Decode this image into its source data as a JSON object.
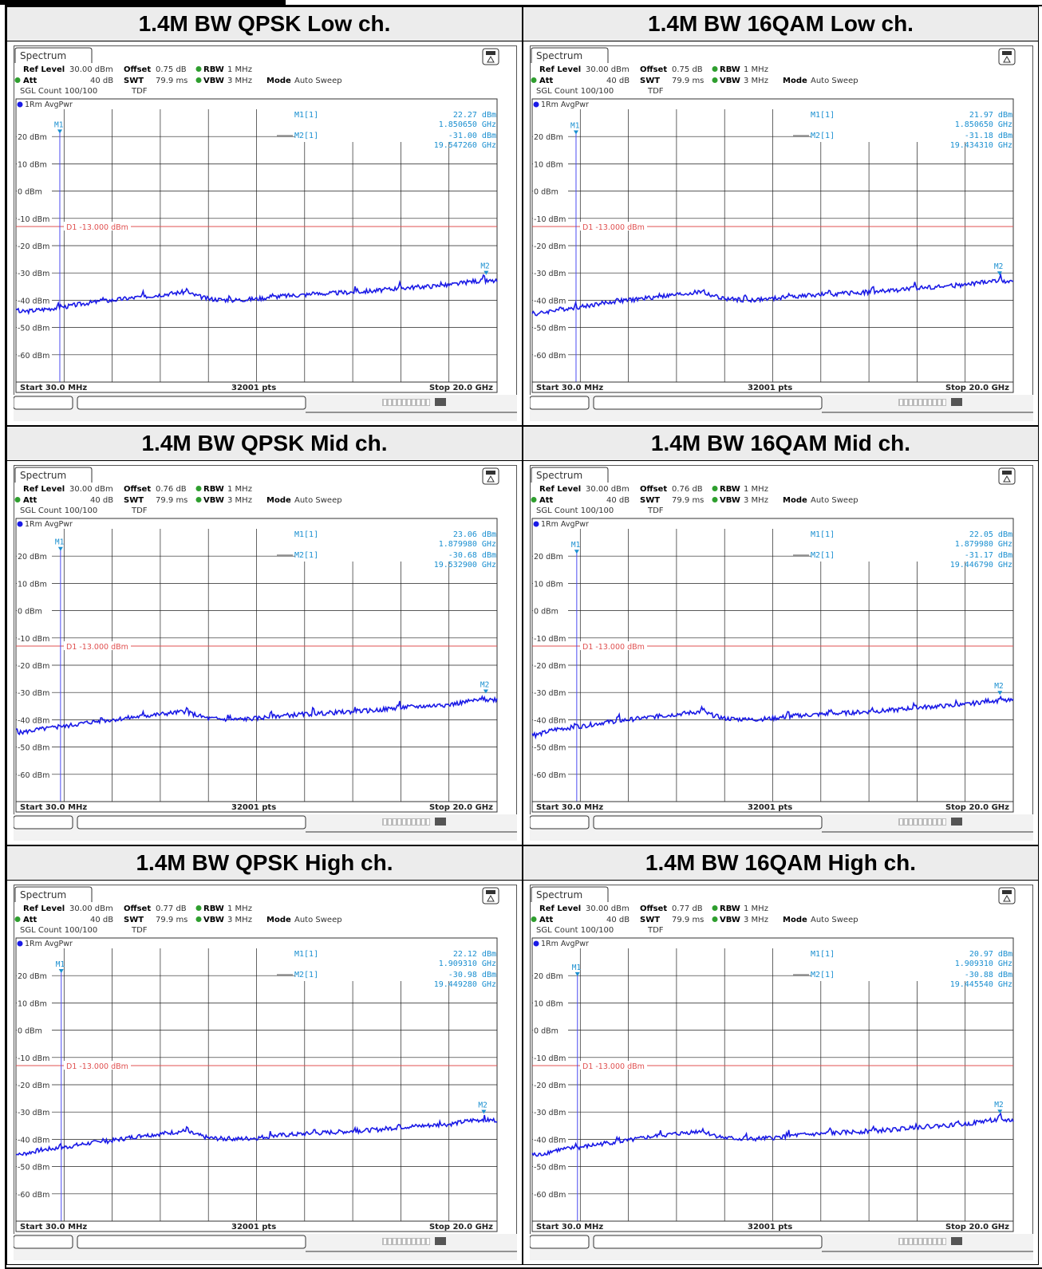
{
  "panels": [
    {
      "title": "1.4M BW QPSK Low ch.",
      "tab": "Spectrum",
      "ref_level": "30.00 dBm",
      "offset": "0.75 dB",
      "rbw": "1 MHz",
      "att": "40 dB",
      "swt": "79.9 ms",
      "vbw": "3 MHz",
      "mode": "Auto Sweep",
      "sgl_count": "SGL Count 100/100",
      "tdf": "TDF",
      "trace_label": "1Rm AvgPwr",
      "m1_label": "M1[1]",
      "m1_value": "22.27 dBm",
      "m1_freq": "1.850650 GHz",
      "m2_label": "M2[1]",
      "m2_value": "-31.00 dBm",
      "m2_freq": "19.547260 GHz",
      "d1_label": "D1 -13.000 dBm",
      "start": "Start 30.0 MHz",
      "pts": "32001 pts",
      "stop": "Stop 20.0 GHz"
    },
    {
      "title": "1.4M BW 16QAM Low ch.",
      "tab": "Spectrum",
      "ref_level": "30.00 dBm",
      "offset": "0.75 dB",
      "rbw": "1 MHz",
      "att": "40 dB",
      "swt": "79.9 ms",
      "vbw": "3 MHz",
      "mode": "Auto Sweep",
      "sgl_count": "SGL Count 100/100",
      "tdf": "TDF",
      "trace_label": "1Rm AvgPwr",
      "m1_label": "M1[1]",
      "m1_value": "21.97 dBm",
      "m1_freq": "1.850650 GHz",
      "m2_label": "M2[1]",
      "m2_value": "-31.18 dBm",
      "m2_freq": "19.434310 GHz",
      "d1_label": "D1 -13.000 dBm",
      "start": "Start 30.0 MHz",
      "pts": "32001 pts",
      "stop": "Stop 20.0 GHz"
    },
    {
      "title": "1.4M BW QPSK Mid ch.",
      "tab": "Spectrum",
      "ref_level": "30.00 dBm",
      "offset": "0.76 dB",
      "rbw": "1 MHz",
      "att": "40 dB",
      "swt": "79.9 ms",
      "vbw": "3 MHz",
      "mode": "Auto Sweep",
      "sgl_count": "SGL Count 100/100",
      "tdf": "TDF",
      "trace_label": "1Rm AvgPwr",
      "m1_label": "M1[1]",
      "m1_value": "23.06 dBm",
      "m1_freq": "1.879980 GHz",
      "m2_label": "M2[1]",
      "m2_value": "-30.68 dBm",
      "m2_freq": "19.532900 GHz",
      "d1_label": "D1 -13.000 dBm",
      "start": "Start 30.0 MHz",
      "pts": "32001 pts",
      "stop": "Stop 20.0 GHz"
    },
    {
      "title": "1.4M BW 16QAM Mid ch.",
      "tab": "Spectrum",
      "ref_level": "30.00 dBm",
      "offset": "0.76 dB",
      "rbw": "1 MHz",
      "att": "40 dB",
      "swt": "79.9 ms",
      "vbw": "3 MHz",
      "mode": "Auto Sweep",
      "sgl_count": "SGL Count 100/100",
      "tdf": "TDF",
      "trace_label": "1Rm AvgPwr",
      "m1_label": "M1[1]",
      "m1_value": "22.05 dBm",
      "m1_freq": "1.879980 GHz",
      "m2_label": "M2[1]",
      "m2_value": "-31.17 dBm",
      "m2_freq": "19.446790 GHz",
      "d1_label": "D1 -13.000 dBm",
      "start": "Start 30.0 MHz",
      "pts": "32001 pts",
      "stop": "Stop 20.0 GHz"
    },
    {
      "title": "1.4M BW QPSK High ch.",
      "tab": "Spectrum",
      "ref_level": "30.00 dBm",
      "offset": "0.77 dB",
      "rbw": "1 MHz",
      "att": "40 dB",
      "swt": "79.9 ms",
      "vbw": "3 MHz",
      "mode": "Auto Sweep",
      "sgl_count": "SGL Count 100/100",
      "tdf": "TDF",
      "trace_label": "1Rm AvgPwr",
      "m1_label": "M1[1]",
      "m1_value": "22.12 dBm",
      "m1_freq": "1.909310 GHz",
      "m2_label": "M2[1]",
      "m2_value": "-30.98 dBm",
      "m2_freq": "19.449280 GHz",
      "d1_label": "D1 -13.000 dBm",
      "start": "Start 30.0 MHz",
      "pts": "32001 pts",
      "stop": "Stop 20.0 GHz"
    },
    {
      "title": "1.4M BW 16QAM High ch.",
      "tab": "Spectrum",
      "ref_level": "30.00 dBm",
      "offset": "0.77 dB",
      "rbw": "1 MHz",
      "att": "40 dB",
      "swt": "79.9 ms",
      "vbw": "3 MHz",
      "mode": "Auto Sweep",
      "sgl_count": "SGL Count 100/100",
      "tdf": "TDF",
      "trace_label": "1Rm AvgPwr",
      "m1_label": "M1[1]",
      "m1_value": "20.97 dBm",
      "m1_freq": "1.909310 GHz",
      "m2_label": "M2[1]",
      "m2_value": "-30.88 dBm",
      "m2_freq": "19.445540 GHz",
      "d1_label": "D1 -13.000 dBm",
      "start": "Start 30.0 MHz",
      "pts": "32001 pts",
      "stop": "Stop 20.0 GHz"
    }
  ],
  "labels": {
    "ref_level": "Ref Level",
    "offset": "Offset",
    "rbw": "RBW",
    "att": "Att",
    "swt": "SWT",
    "vbw": "VBW",
    "mode": "Mode",
    "m1": "M1",
    "m2": "M2"
  },
  "colors": {
    "trace": "#1a1ae6",
    "limit": "#e05050",
    "marker": "#1a8fd0",
    "grid": "#000000"
  },
  "chart_data": [
    {
      "type": "line",
      "title": "1.4M BW QPSK Low ch.",
      "x_unit": "GHz",
      "xlim": [
        0.03,
        20.0
      ],
      "ylim": [
        -70,
        30
      ],
      "y_unit": "dBm",
      "y_ticks": [
        20,
        10,
        0,
        -10,
        -20,
        -30,
        -40,
        -50,
        -60
      ],
      "y_tick_labels": [
        "20 dBm",
        "10 dBm",
        "0 dBm",
        "-10 dBm",
        "-20 dBm",
        "-30 dBm",
        "-40 dBm",
        "-50 dBm",
        "-60 dBm"
      ],
      "limit_line": -13.0,
      "markers": [
        {
          "name": "M1",
          "x": 1.85065,
          "y": 22.27
        },
        {
          "name": "M2",
          "x": 19.54726,
          "y": -31.0
        }
      ],
      "series": [
        {
          "x": [
            0.03,
            1,
            2,
            3,
            4,
            5,
            6,
            7,
            8,
            9,
            10,
            11,
            12,
            13,
            14,
            15,
            16,
            17,
            18,
            19,
            20
          ],
          "y": [
            -44.5,
            -43.5,
            -42.5,
            -41,
            -40,
            -39,
            -38,
            -37,
            -39.5,
            -40,
            -39.5,
            -38.5,
            -38,
            -37.5,
            -37,
            -36.5,
            -35.5,
            -35,
            -34.5,
            -33,
            -33
          ]
        }
      ]
    },
    {
      "type": "line",
      "title": "1.4M BW 16QAM Low ch.",
      "x_unit": "GHz",
      "xlim": [
        0.03,
        20.0
      ],
      "ylim": [
        -70,
        30
      ],
      "y_unit": "dBm",
      "y_ticks": [
        20,
        10,
        0,
        -10,
        -20,
        -30,
        -40,
        -50,
        -60
      ],
      "y_tick_labels": [
        "20 dBm",
        "10 dBm",
        "0 dBm",
        "-10 dBm",
        "-20 dBm",
        "-30 dBm",
        "-40 dBm",
        "-50 dBm",
        "-60 dBm"
      ],
      "limit_line": -13.0,
      "markers": [
        {
          "name": "M1",
          "x": 1.85065,
          "y": 21.97
        },
        {
          "name": "M2",
          "x": 19.43431,
          "y": -31.18
        }
      ],
      "series": [
        {
          "x": [
            0.03,
            1,
            2,
            3,
            4,
            5,
            6,
            7,
            8,
            9,
            10,
            11,
            12,
            13,
            14,
            15,
            16,
            17,
            18,
            19,
            20
          ],
          "y": [
            -45.5,
            -43.5,
            -42.5,
            -41,
            -40,
            -39,
            -38,
            -37,
            -39.5,
            -40,
            -39.5,
            -38.5,
            -38,
            -37.5,
            -37,
            -36.5,
            -35.5,
            -35,
            -34.5,
            -33,
            -33
          ]
        }
      ]
    },
    {
      "type": "line",
      "title": "1.4M BW QPSK Mid ch.",
      "x_unit": "GHz",
      "xlim": [
        0.03,
        20.0
      ],
      "ylim": [
        -70,
        30
      ],
      "y_unit": "dBm",
      "y_ticks": [
        20,
        10,
        0,
        -10,
        -20,
        -30,
        -40,
        -50,
        -60
      ],
      "y_tick_labels": [
        "20 dBm",
        "10 dBm",
        "0 dBm",
        "-10 dBm",
        "-20 dBm",
        "-30 dBm",
        "-40 dBm",
        "-50 dBm",
        "-60 dBm"
      ],
      "limit_line": -13.0,
      "markers": [
        {
          "name": "M1",
          "x": 1.87998,
          "y": 23.06
        },
        {
          "name": "M2",
          "x": 19.5329,
          "y": -30.68
        }
      ],
      "series": [
        {
          "x": [
            0.03,
            1,
            2,
            3,
            4,
            5,
            6,
            7,
            8,
            9,
            10,
            11,
            12,
            13,
            14,
            15,
            16,
            17,
            18,
            19,
            20
          ],
          "y": [
            -45,
            -43.5,
            -42.5,
            -41,
            -40,
            -39,
            -38,
            -37,
            -39.5,
            -40,
            -39.5,
            -38.5,
            -38,
            -37.5,
            -37,
            -36.5,
            -35.5,
            -35,
            -34.5,
            -33,
            -32.5
          ]
        }
      ]
    },
    {
      "type": "line",
      "title": "1.4M BW 16QAM Mid ch.",
      "x_unit": "GHz",
      "xlim": [
        0.03,
        20.0
      ],
      "ylim": [
        -70,
        30
      ],
      "y_unit": "dBm",
      "y_ticks": [
        20,
        10,
        0,
        -10,
        -20,
        -30,
        -40,
        -50,
        -60
      ],
      "y_tick_labels": [
        "20 dBm",
        "10 dBm",
        "0 dBm",
        "-10 dBm",
        "-20 dBm",
        "-30 dBm",
        "-40 dBm",
        "-50 dBm",
        "-60 dBm"
      ],
      "limit_line": -13.0,
      "markers": [
        {
          "name": "M1",
          "x": 1.87998,
          "y": 22.05
        },
        {
          "name": "M2",
          "x": 19.44679,
          "y": -31.17
        }
      ],
      "series": [
        {
          "x": [
            0.03,
            1,
            2,
            3,
            4,
            5,
            6,
            7,
            8,
            9,
            10,
            11,
            12,
            13,
            14,
            15,
            16,
            17,
            18,
            19,
            20
          ],
          "y": [
            -46,
            -43.5,
            -42.5,
            -41,
            -40,
            -39,
            -38,
            -37,
            -39.5,
            -40,
            -39.5,
            -38.5,
            -38,
            -37.5,
            -37,
            -36.5,
            -35.5,
            -35,
            -34.5,
            -33,
            -33
          ]
        }
      ]
    },
    {
      "type": "line",
      "title": "1.4M BW QPSK High ch.",
      "x_unit": "GHz",
      "xlim": [
        0.03,
        20.0
      ],
      "ylim": [
        -70,
        30
      ],
      "y_unit": "dBm",
      "y_ticks": [
        20,
        10,
        0,
        -10,
        -20,
        -30,
        -40,
        -50,
        -60
      ],
      "y_tick_labels": [
        "20 dBm",
        "10 dBm",
        "0 dBm",
        "-10 dBm",
        "-20 dBm",
        "-30 dBm",
        "-40 dBm",
        "-50 dBm",
        "-60 dBm"
      ],
      "limit_line": -13.0,
      "markers": [
        {
          "name": "M1",
          "x": 1.90931,
          "y": 22.12
        },
        {
          "name": "M2",
          "x": 19.44928,
          "y": -30.98
        }
      ],
      "series": [
        {
          "x": [
            0.03,
            1,
            2,
            3,
            4,
            5,
            6,
            7,
            8,
            9,
            10,
            11,
            12,
            13,
            14,
            15,
            16,
            17,
            18,
            19,
            20
          ],
          "y": [
            -46,
            -44,
            -43,
            -41.5,
            -40.5,
            -39,
            -38,
            -37,
            -39.5,
            -40,
            -39.5,
            -38.5,
            -38,
            -37.5,
            -37,
            -36.5,
            -35.5,
            -35,
            -34.5,
            -33,
            -33
          ]
        }
      ]
    },
    {
      "type": "line",
      "title": "1.4M BW 16QAM High ch.",
      "x_unit": "GHz",
      "xlim": [
        0.03,
        20.0
      ],
      "ylim": [
        -70,
        30
      ],
      "y_unit": "dBm",
      "y_ticks": [
        20,
        10,
        0,
        -10,
        -20,
        -30,
        -40,
        -50,
        -60
      ],
      "y_tick_labels": [
        "20 dBm",
        "10 dBm",
        "0 dBm",
        "-10 dBm",
        "-20 dBm",
        "-30 dBm",
        "-40 dBm",
        "-50 dBm",
        "-60 dBm"
      ],
      "limit_line": -13.0,
      "markers": [
        {
          "name": "M1",
          "x": 1.90931,
          "y": 20.97
        },
        {
          "name": "M2",
          "x": 19.44554,
          "y": -30.88
        }
      ],
      "series": [
        {
          "x": [
            0.03,
            1,
            2,
            3,
            4,
            5,
            6,
            7,
            8,
            9,
            10,
            11,
            12,
            13,
            14,
            15,
            16,
            17,
            18,
            19,
            20
          ],
          "y": [
            -46.5,
            -44,
            -43,
            -41.5,
            -40.5,
            -39,
            -38,
            -37,
            -39.5,
            -40,
            -39.5,
            -38.5,
            -38,
            -37.5,
            -37,
            -36.5,
            -35.5,
            -35,
            -34.5,
            -33,
            -33
          ]
        }
      ]
    }
  ]
}
